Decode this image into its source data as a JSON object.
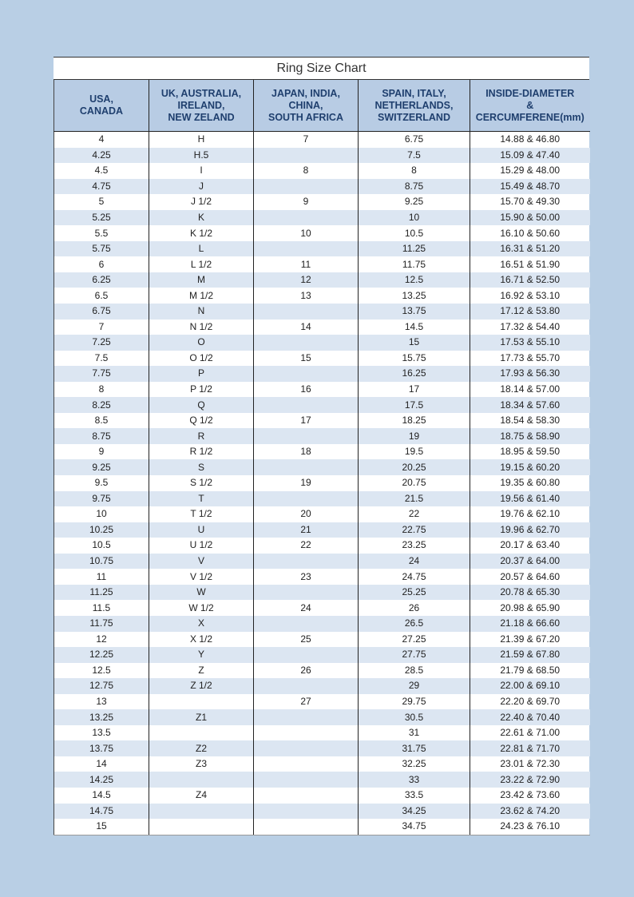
{
  "title": "Ring Size Chart",
  "headers": [
    [
      "USA,",
      "CANADA"
    ],
    [
      "UK, AUSTRALIA,",
      "IRELAND,",
      "NEW ZELAND"
    ],
    [
      "JAPAN, INDIA,",
      "CHINA,",
      "SOUTH AFRICA"
    ],
    [
      "SPAIN, ITALY,",
      "NETHERLANDS,",
      "SWITZERLAND"
    ],
    [
      "INSIDE-DIAMETER",
      "&",
      "CERCUMFERENE(mm)"
    ]
  ],
  "colors": {
    "page_bg": "#b9cfe5",
    "header_bg": "#b8cce4",
    "alt_row": "#dce6f2",
    "header_text": "#1f3f6e"
  },
  "rows": [
    [
      "4",
      "H",
      "7",
      "6.75",
      "14.88 & 46.80"
    ],
    [
      "4.25",
      "H.5",
      "",
      "7.5",
      "15.09 & 47.40"
    ],
    [
      "4.5",
      "I",
      "8",
      "8",
      "15.29 & 48.00"
    ],
    [
      "4.75",
      "J",
      "",
      "8.75",
      "15.49 & 48.70"
    ],
    [
      "5",
      "J 1/2",
      "9",
      "9.25",
      "15.70 & 49.30"
    ],
    [
      "5.25",
      "K",
      "",
      "10",
      "15.90  & 50.00"
    ],
    [
      "5.5",
      "K 1/2",
      "10",
      "10.5",
      "16.10 & 50.60"
    ],
    [
      "5.75",
      "L",
      "",
      "11.25",
      "16.31 & 51.20"
    ],
    [
      "6",
      "L 1/2",
      "11",
      "11.75",
      "16.51 & 51.90"
    ],
    [
      "6.25",
      "M",
      "12",
      "12.5",
      "16.71 & 52.50"
    ],
    [
      "6.5",
      "M 1/2",
      "13",
      "13.25",
      "16.92 & 53.10"
    ],
    [
      "6.75",
      "N",
      "",
      "13.75",
      "17.12 & 53.80"
    ],
    [
      "7",
      "N 1/2",
      "14",
      "14.5",
      "17.32 & 54.40"
    ],
    [
      "7.25",
      "O",
      "",
      "15",
      "17.53 & 55.10"
    ],
    [
      "7.5",
      "O 1/2",
      "15",
      "15.75",
      "17.73 & 55.70"
    ],
    [
      "7.75",
      "P",
      "",
      "16.25",
      "17.93 & 56.30"
    ],
    [
      "8",
      "P 1/2",
      "16",
      "17",
      "18.14 & 57.00"
    ],
    [
      "8.25",
      "Q",
      "",
      "17.5",
      "18.34 & 57.60"
    ],
    [
      "8.5",
      "Q 1/2",
      "17",
      "18.25",
      "18.54 & 58.30"
    ],
    [
      "8.75",
      "R",
      "",
      "19",
      "18.75 & 58.90"
    ],
    [
      "9",
      "R 1/2",
      "18",
      "19.5",
      "18.95 & 59.50"
    ],
    [
      "9.25",
      "S",
      "",
      "20.25",
      "19.15 & 60.20"
    ],
    [
      "9.5",
      "S 1/2",
      "19",
      "20.75",
      "19.35 & 60.80"
    ],
    [
      "9.75",
      "T",
      "",
      "21.5",
      "19.56 & 61.40"
    ],
    [
      "10",
      "T 1/2",
      "20",
      "22",
      "19.76 & 62.10"
    ],
    [
      "10.25",
      "U",
      "21",
      "22.75",
      "19.96 & 62.70"
    ],
    [
      "10.5",
      "U 1/2",
      "22",
      "23.25",
      "20.17 & 63.40"
    ],
    [
      "10.75",
      "V",
      "",
      "24",
      "20.37 & 64.00"
    ],
    [
      "11",
      "V 1/2",
      "23",
      "24.75",
      "20.57 & 64.60"
    ],
    [
      "11.25",
      "W",
      "",
      "25.25",
      "20.78 & 65.30"
    ],
    [
      "11.5",
      "W 1/2",
      "24",
      "26",
      "20.98 & 65.90"
    ],
    [
      "11.75",
      "X",
      "",
      "26.5",
      "21.18 & 66.60"
    ],
    [
      "12",
      "X 1/2",
      "25",
      "27.25",
      "21.39 & 67.20"
    ],
    [
      "12.25",
      "Y",
      "",
      "27.75",
      "21.59 & 67.80"
    ],
    [
      "12.5",
      "Z",
      "26",
      "28.5",
      "21.79 & 68.50"
    ],
    [
      "12.75",
      "Z 1/2",
      "",
      "29",
      "22.00 & 69.10"
    ],
    [
      "13",
      "",
      "27",
      "29.75",
      "22.20 & 69.70"
    ],
    [
      "13.25",
      "Z1",
      "",
      "30.5",
      "22.40 & 70.40"
    ],
    [
      "13.5",
      "",
      "",
      "31",
      "22.61 & 71.00"
    ],
    [
      "13.75",
      "Z2",
      "",
      "31.75",
      "22.81 & 71.70"
    ],
    [
      "14",
      "Z3",
      "",
      "32.25",
      "23.01 & 72.30"
    ],
    [
      "14.25",
      "",
      "",
      "33",
      "23.22 & 72.90"
    ],
    [
      "14.5",
      "Z4",
      "",
      "33.5",
      "23.42 & 73.60"
    ],
    [
      "14.75",
      "",
      "",
      "34.25",
      "23.62 & 74.20"
    ],
    [
      "15",
      "",
      "",
      "34.75",
      "24.23 & 76.10"
    ]
  ]
}
